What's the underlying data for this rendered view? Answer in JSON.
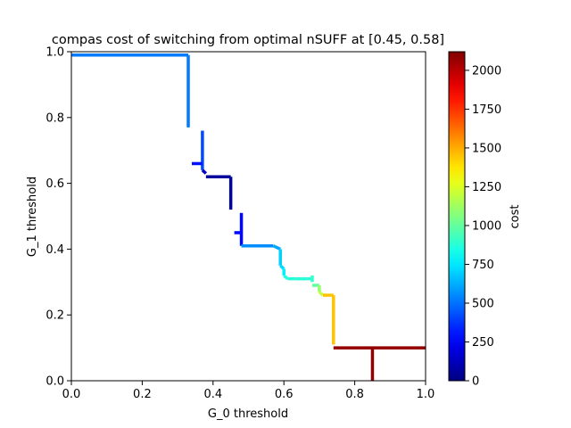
{
  "chart_data": {
    "type": "line",
    "title": "compas cost of switching from optimal nSUFF at [0.45, 0.58]",
    "xlabel": "G_0 threshold",
    "ylabel": "G_1 threshold",
    "xlim": [
      0,
      1
    ],
    "ylim": [
      0,
      1
    ],
    "x_ticks": [
      "0.0",
      "0.2",
      "0.4",
      "0.6",
      "0.8",
      "1.0"
    ],
    "y_ticks": [
      "0.0",
      "0.2",
      "0.4",
      "0.6",
      "0.8",
      "1.0"
    ],
    "grid": false,
    "colorbar": {
      "label": "cost",
      "range": [
        0,
        2120
      ],
      "ticks": [
        "0",
        "250",
        "500",
        "750",
        "1000",
        "1250",
        "1500",
        "1750",
        "2000"
      ],
      "colormap": "jet"
    },
    "segments": [
      {
        "x": [
          0.0,
          0.33
        ],
        "y": [
          0.99,
          0.99
        ],
        "cost": 520
      },
      {
        "x": [
          0.33,
          0.33
        ],
        "y": [
          0.99,
          0.77
        ],
        "cost": 520
      },
      {
        "x": [
          0.37,
          0.37
        ],
        "y": [
          0.76,
          0.64
        ],
        "cost": 420
      },
      {
        "x": [
          0.34,
          0.37
        ],
        "y": [
          0.66,
          0.66
        ],
        "cost": 300
      },
      {
        "x": [
          0.37,
          0.38
        ],
        "y": [
          0.64,
          0.63
        ],
        "cost": 150
      },
      {
        "x": [
          0.38,
          0.45
        ],
        "y": [
          0.62,
          0.62
        ],
        "cost": 60
      },
      {
        "x": [
          0.45,
          0.45
        ],
        "y": [
          0.62,
          0.52
        ],
        "cost": 60
      },
      {
        "x": [
          0.48,
          0.48
        ],
        "y": [
          0.51,
          0.41
        ],
        "cost": 280
      },
      {
        "x": [
          0.46,
          0.48
        ],
        "y": [
          0.45,
          0.45
        ],
        "cost": 280
      },
      {
        "x": [
          0.48,
          0.57
        ],
        "y": [
          0.41,
          0.41
        ],
        "cost": 560
      },
      {
        "x": [
          0.57,
          0.59
        ],
        "y": [
          0.41,
          0.4
        ],
        "cost": 610
      },
      {
        "x": [
          0.59,
          0.59
        ],
        "y": [
          0.4,
          0.35
        ],
        "cost": 700
      },
      {
        "x": [
          0.59,
          0.6
        ],
        "y": [
          0.35,
          0.34
        ],
        "cost": 720
      },
      {
        "x": [
          0.6,
          0.6
        ],
        "y": [
          0.34,
          0.32
        ],
        "cost": 760
      },
      {
        "x": [
          0.6,
          0.61
        ],
        "y": [
          0.32,
          0.31
        ],
        "cost": 850
      },
      {
        "x": [
          0.61,
          0.68
        ],
        "y": [
          0.31,
          0.31
        ],
        "cost": 880
      },
      {
        "x": [
          0.68,
          0.68
        ],
        "y": [
          0.32,
          0.3
        ],
        "cost": 900
      },
      {
        "x": [
          0.68,
          0.7
        ],
        "y": [
          0.29,
          0.29
        ],
        "cost": 1000
      },
      {
        "x": [
          0.7,
          0.7
        ],
        "y": [
          0.29,
          0.27
        ],
        "cost": 1100
      },
      {
        "x": [
          0.7,
          0.71
        ],
        "y": [
          0.27,
          0.26
        ],
        "cost": 1200
      },
      {
        "x": [
          0.71,
          0.74
        ],
        "y": [
          0.26,
          0.26
        ],
        "cost": 1450
      },
      {
        "x": [
          0.74,
          0.74
        ],
        "y": [
          0.26,
          0.11
        ],
        "cost": 1450
      },
      {
        "x": [
          0.74,
          1.0
        ],
        "y": [
          0.1,
          0.1
        ],
        "cost": 2080
      },
      {
        "x": [
          0.85,
          0.85
        ],
        "y": [
          0.1,
          0.0
        ],
        "cost": 2080
      }
    ]
  }
}
